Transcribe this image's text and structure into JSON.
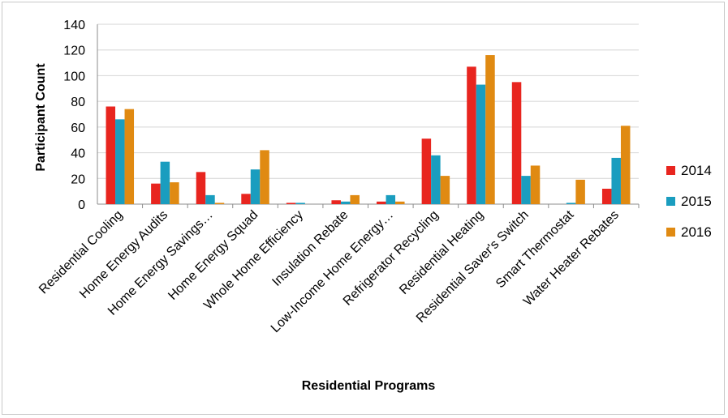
{
  "chart_data": {
    "type": "bar",
    "title": "",
    "xlabel": "Residential Programs",
    "ylabel": "Participant Count",
    "ylim": [
      0,
      140
    ],
    "yticks": [
      0,
      20,
      40,
      60,
      80,
      100,
      120,
      140
    ],
    "grid": true,
    "legend_position": "right",
    "categories": [
      "Residential Cooling",
      "Home Energy Audits",
      "Home Energy Savings…",
      "Home Energy Squad",
      "Whole Home Efficiency",
      "Insulation Rebate",
      "Low-Income Home Energy…",
      "Refrigerator Recycling",
      "Residential Heating",
      "Residential Saver's Switch",
      "Smart Thermostat",
      "Water Heater Rebates"
    ],
    "series": [
      {
        "name": "2014",
        "color": "#e8251f",
        "values": [
          76,
          16,
          25,
          8,
          1,
          3,
          2,
          51,
          107,
          95,
          0,
          12
        ]
      },
      {
        "name": "2015",
        "color": "#1a9dbf",
        "values": [
          66,
          33,
          7,
          27,
          1,
          2,
          7,
          38,
          93,
          22,
          1,
          36
        ]
      },
      {
        "name": "2016",
        "color": "#e08a12",
        "values": [
          74,
          17,
          1,
          42,
          0,
          7,
          2,
          22,
          116,
          30,
          19,
          61
        ]
      }
    ]
  }
}
